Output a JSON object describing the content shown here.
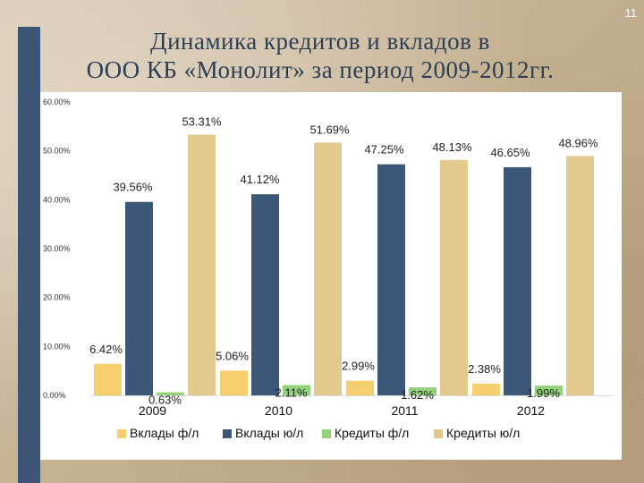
{
  "slide": {
    "number": "11"
  },
  "title": {
    "line1": "Динамика кредитов и вкладов в",
    "line2": "ООО КБ «Монолит» за период 2009-2012гг."
  },
  "colors": {
    "accent_bar": "#3d5575",
    "background": "#c9b79e"
  },
  "chart_data": {
    "type": "bar",
    "categories": [
      "2009",
      "2010",
      "2011",
      "2012"
    ],
    "ylim": [
      0,
      60
    ],
    "yticks": [
      "0.00%",
      "10.00%",
      "20.00%",
      "30.00%",
      "40.00%",
      "50.00%",
      "60.00%"
    ],
    "grid": false,
    "legend_position": "bottom",
    "series": [
      {
        "name": "Вклады ф/л",
        "color": "#f5cf6e",
        "values": [
          6.42,
          5.06,
          2.99,
          2.38
        ],
        "labels": [
          "6.42%",
          "5.06%",
          "2.99%",
          "2.38%"
        ]
      },
      {
        "name": "Вклады ю/л",
        "color": "#3b5878",
        "values": [
          39.56,
          41.12,
          47.25,
          46.65
        ],
        "labels": [
          "39.56%",
          "41.12%",
          "47.25%",
          "46.65%"
        ]
      },
      {
        "name": "Кредиты ф/л",
        "color": "#93d27a",
        "values": [
          0.63,
          2.11,
          1.62,
          1.99
        ],
        "labels": [
          "0.63%",
          "2.11%",
          "1.62%",
          "1.99%"
        ]
      },
      {
        "name": "Кредиты ю/л",
        "color": "#e3c98e",
        "values": [
          53.31,
          51.69,
          48.13,
          48.96
        ],
        "labels": [
          "53.31%",
          "51.69%",
          "48.13%",
          "48.96%"
        ]
      }
    ]
  }
}
